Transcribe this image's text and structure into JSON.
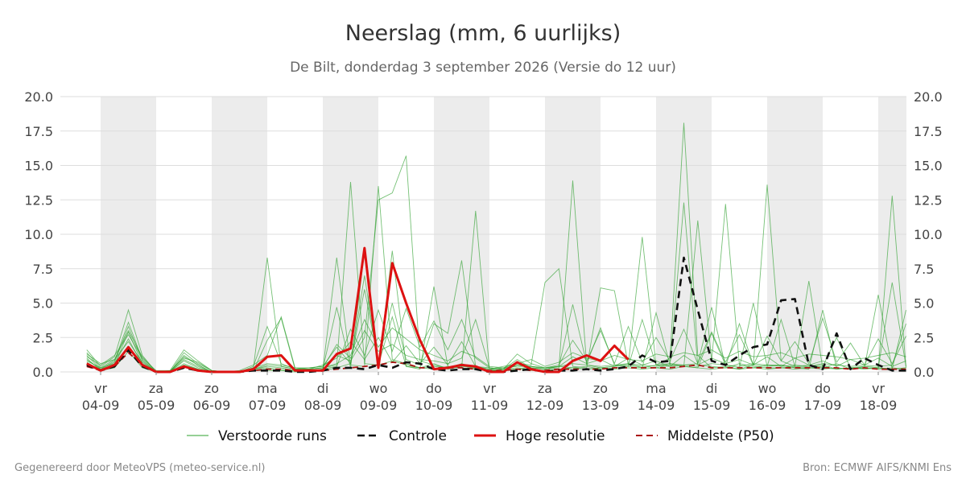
{
  "title": "Neerslag (mm, 6 uurlijks)",
  "subtitle": "De Bilt, donderdag  3 september 2026 (Versie do 12 uur)",
  "footer_left": "Gegenereerd door MeteoVPS (meteo-service.nl)",
  "footer_right": "Bron: ECMWF AIFS/KNMI Ens",
  "chart_data": {
    "type": "line",
    "x_unit": "days",
    "x_start_label": "04-09",
    "ylim": [
      0,
      20
    ],
    "yticks": [
      "0.0",
      "2.5",
      "5.0",
      "7.5",
      "10.0",
      "12.5",
      "15.0",
      "17.5",
      "20.0"
    ],
    "xticks": [
      {
        "day": "vr",
        "date": "04-09"
      },
      {
        "day": "za",
        "date": "05-09"
      },
      {
        "day": "zo",
        "date": "06-09"
      },
      {
        "day": "ma",
        "date": "07-09"
      },
      {
        "day": "di",
        "date": "08-09"
      },
      {
        "day": "wo",
        "date": "09-09"
      },
      {
        "day": "do",
        "date": "10-09"
      },
      {
        "day": "vr",
        "date": "11-09"
      },
      {
        "day": "za",
        "date": "12-09"
      },
      {
        "day": "zo",
        "date": "13-09"
      },
      {
        "day": "ma",
        "date": "14-09"
      },
      {
        "day": "di",
        "date": "15-09"
      },
      {
        "day": "wo",
        "date": "16-09"
      },
      {
        "day": "do",
        "date": "17-09"
      },
      {
        "day": "vr",
        "date": "18-09"
      }
    ],
    "grid": true,
    "legend_position": "bottom",
    "colors": {
      "ensemble": "#2ca02c",
      "control": "#111111",
      "high_res": "#dd1111",
      "median": "#aa1111",
      "weekend_band": "#ececec",
      "grid": "#dddddd"
    },
    "series": [
      {
        "name": "Controle",
        "x": [
          -0.25,
          0,
          0.25,
          0.5,
          0.75,
          1,
          1.25,
          1.5,
          1.75,
          2,
          2.25,
          2.5,
          2.75,
          3,
          3.25,
          3.5,
          3.75,
          4,
          4.25,
          4.5,
          4.75,
          5,
          5.25,
          5.5,
          5.75,
          6,
          6.25,
          6.5,
          6.75,
          7,
          7.25,
          7.5,
          7.75,
          8,
          8.25,
          8.5,
          8.75,
          9,
          9.25,
          9.5,
          9.75,
          10,
          10.25,
          10.5,
          10.75,
          11,
          11.25,
          11.5,
          11.75,
          12,
          12.25,
          12.5,
          12.75,
          13,
          13.25,
          13.5,
          13.75,
          14,
          14.25,
          14.5
        ],
        "values": [
          0.5,
          0.1,
          0.4,
          1.6,
          0.4,
          0.0,
          0.0,
          0.3,
          0.1,
          0.0,
          0.0,
          0.0,
          0.1,
          0.1,
          0.1,
          0.0,
          0.0,
          0.1,
          0.3,
          0.3,
          0.2,
          0.5,
          0.3,
          0.7,
          0.6,
          0.2,
          0.1,
          0.2,
          0.2,
          0.0,
          0.0,
          0.1,
          0.2,
          0.0,
          0.1,
          0.1,
          0.2,
          0.1,
          0.2,
          0.4,
          1.2,
          0.7,
          0.8,
          8.3,
          4.5,
          0.8,
          0.5,
          1.2,
          1.8,
          2.0,
          5.2,
          5.3,
          0.5,
          0.2,
          2.8,
          0.2,
          1.0,
          0.5,
          0.1,
          0.1
        ]
      },
      {
        "name": "Hoge resolutie",
        "x": [
          -0.25,
          0,
          0.25,
          0.5,
          0.75,
          1,
          1.25,
          1.5,
          1.75,
          2,
          2.25,
          2.5,
          2.75,
          3,
          3.25,
          3.5,
          3.75,
          4,
          4.25,
          4.5,
          4.75,
          5,
          5.25,
          5.5,
          5.75,
          6,
          6.25,
          6.5,
          6.75,
          7,
          7.25,
          7.5,
          7.75,
          8,
          8.25,
          8.5,
          8.75,
          9,
          9.25,
          9.5
        ],
        "values": [
          0.6,
          0.1,
          0.5,
          1.8,
          0.5,
          0.0,
          0.0,
          0.4,
          0.1,
          0.0,
          0.0,
          0.0,
          0.2,
          1.1,
          1.2,
          0.1,
          0.1,
          0.1,
          1.3,
          1.7,
          9.0,
          0.3,
          7.9,
          5.0,
          2.3,
          0.2,
          0.3,
          0.5,
          0.4,
          0.0,
          0.0,
          0.7,
          0.2,
          0.0,
          0.0,
          0.8,
          1.2,
          0.8,
          1.9,
          0.9
        ]
      },
      {
        "name": "Middelste (P50)",
        "x": [
          -0.25,
          0,
          0.25,
          0.5,
          0.75,
          1,
          1.25,
          1.5,
          1.75,
          2,
          2.25,
          2.5,
          2.75,
          3,
          3.25,
          3.5,
          3.75,
          4,
          4.25,
          4.5,
          4.75,
          5,
          5.25,
          5.5,
          5.75,
          6,
          6.25,
          6.5,
          6.75,
          7,
          7.25,
          7.5,
          7.75,
          8,
          8.25,
          8.5,
          8.75,
          9,
          9.25,
          9.5,
          9.75,
          10,
          10.25,
          10.5,
          10.75,
          11,
          11.25,
          11.5,
          11.75,
          12,
          12.25,
          12.5,
          12.75,
          13,
          13.25,
          13.5,
          13.75,
          14,
          14.25,
          14.5
        ],
        "values": [
          0.4,
          0.1,
          0.4,
          1.4,
          0.5,
          0.0,
          0.0,
          0.3,
          0.1,
          0.0,
          0.0,
          0.0,
          0.1,
          0.2,
          0.2,
          0.1,
          0.1,
          0.1,
          0.2,
          0.3,
          0.4,
          0.5,
          0.7,
          0.6,
          0.3,
          0.3,
          0.3,
          0.3,
          0.2,
          0.1,
          0.1,
          0.2,
          0.1,
          0.1,
          0.2,
          0.2,
          0.2,
          0.2,
          0.3,
          0.3,
          0.3,
          0.3,
          0.3,
          0.4,
          0.5,
          0.3,
          0.3,
          0.3,
          0.3,
          0.3,
          0.3,
          0.3,
          0.3,
          0.3,
          0.3,
          0.2,
          0.3,
          0.2,
          0.2,
          0.2
        ]
      }
    ],
    "ensemble": {
      "name": "Verstoorde runs",
      "x": [
        -0.25,
        0,
        0.25,
        0.5,
        0.75,
        1,
        1.25,
        1.5,
        1.75,
        2,
        2.25,
        2.5,
        2.75,
        3,
        3.25,
        3.5,
        3.75,
        4,
        4.25,
        4.5,
        4.75,
        5,
        5.25,
        5.5,
        5.75,
        6,
        6.25,
        6.5,
        6.75,
        7,
        7.25,
        7.5,
        7.75,
        8,
        8.25,
        8.5,
        8.75,
        9,
        9.25,
        9.5,
        9.75,
        10,
        10.25,
        10.5,
        10.75,
        11,
        11.25,
        11.5,
        11.75,
        12,
        12.25,
        12.5,
        12.75,
        13,
        13.25,
        13.5,
        13.75,
        14,
        14.25,
        14.5
      ],
      "members": [
        [
          1.2,
          0.2,
          0.8,
          3.6,
          0.9,
          0.0,
          0.0,
          1.2,
          0.5,
          0.0,
          0.0,
          0.0,
          0.3,
          8.3,
          0.4,
          0.2,
          0.2,
          0.3,
          0.5,
          13.8,
          0.6,
          0.5,
          0.8,
          0.5,
          0.3,
          0.4,
          0.3,
          0.5,
          0.2,
          0.1,
          0.1,
          0.5,
          0.3,
          0.2,
          0.4,
          0.3,
          0.2,
          0.3,
          0.4,
          0.6,
          0.3,
          0.5,
          1.0,
          18.1,
          1.2,
          0.3,
          0.4,
          0.2,
          0.5,
          13.6,
          0.8,
          0.4,
          0.5,
          0.3,
          0.6,
          0.2,
          0.4,
          0.3,
          0.2,
          4.5
        ],
        [
          0.8,
          0.3,
          0.6,
          2.4,
          0.5,
          0.0,
          0.0,
          0.6,
          0.2,
          0.0,
          0.0,
          0.0,
          0.1,
          0.2,
          0.1,
          0.1,
          0.1,
          0.2,
          8.3,
          0.5,
          0.4,
          13.5,
          0.9,
          0.6,
          0.3,
          0.2,
          0.4,
          0.3,
          11.7,
          0.2,
          0.1,
          0.2,
          0.4,
          0.2,
          0.3,
          13.9,
          0.5,
          0.3,
          0.4,
          0.5,
          9.8,
          0.5,
          0.6,
          0.4,
          11.0,
          0.8,
          12.2,
          0.5,
          0.3,
          0.5,
          0.5,
          0.3,
          0.4,
          0.5,
          0.2,
          0.3,
          0.3,
          0.2,
          12.8,
          0.3
        ],
        [
          1.6,
          0.4,
          1.1,
          4.5,
          1.2,
          0.0,
          0.1,
          1.6,
          0.8,
          0.1,
          0.0,
          0.1,
          0.5,
          1.2,
          4.0,
          0.3,
          0.3,
          0.4,
          1.2,
          0.8,
          2.5,
          12.5,
          13.0,
          15.7,
          0.8,
          0.5,
          0.3,
          0.6,
          0.3,
          0.2,
          0.4,
          0.6,
          0.5,
          6.5,
          7.5,
          0.4,
          0.3,
          6.1,
          5.9,
          0.5,
          0.4,
          0.3,
          0.5,
          12.3,
          0.5,
          0.4,
          0.3,
          0.6,
          0.4,
          0.3,
          0.3,
          0.4,
          6.6,
          0.3,
          0.2,
          0.3,
          0.2,
          0.3,
          0.2,
          0.3
        ],
        [
          1.0,
          0.1,
          0.5,
          2.9,
          0.6,
          0.0,
          0.0,
          0.8,
          0.3,
          0.0,
          0.0,
          0.0,
          0.2,
          0.4,
          0.3,
          0.1,
          0.1,
          0.2,
          4.7,
          0.3,
          8.8,
          0.3,
          8.8,
          0.4,
          0.2,
          6.2,
          0.4,
          0.3,
          0.2,
          0.1,
          0.2,
          0.3,
          0.2,
          0.1,
          0.2,
          0.3,
          0.4,
          0.2,
          0.3,
          0.4,
          0.3,
          4.3,
          0.5,
          0.4,
          0.3,
          2.8,
          0.5,
          0.3,
          5.0,
          0.4,
          0.5,
          0.3,
          0.2,
          4.5,
          0.3,
          0.2,
          0.3,
          5.6,
          0.2,
          0.3
        ],
        [
          0.6,
          0.2,
          0.7,
          3.3,
          0.8,
          0.0,
          0.0,
          1.4,
          0.6,
          0.1,
          0.0,
          0.0,
          0.4,
          3.3,
          0.6,
          0.2,
          0.3,
          0.4,
          1.8,
          0.6,
          6.0,
          0.8,
          5.0,
          0.9,
          0.5,
          3.5,
          2.8,
          8.1,
          0.4,
          0.2,
          0.3,
          0.4,
          0.4,
          0.3,
          0.4,
          4.9,
          0.6,
          3.2,
          0.5,
          0.4,
          3.8,
          0.5,
          0.4,
          0.5,
          0.6,
          4.7,
          0.4,
          3.5,
          0.5,
          0.4,
          3.8,
          0.4,
          0.3,
          0.4,
          2.5,
          0.3,
          0.4,
          0.3,
          6.5,
          0.4
        ],
        [
          1.4,
          0.3,
          0.9,
          2.2,
          0.7,
          0.0,
          0.0,
          0.9,
          0.4,
          0.0,
          0.0,
          0.0,
          0.2,
          0.3,
          0.2,
          0.1,
          0.2,
          0.3,
          0.6,
          1.2,
          3.8,
          1.8,
          3.2,
          2.4,
          1.6,
          1.2,
          0.8,
          1.5,
          1.1,
          0.4,
          0.3,
          0.6,
          0.9,
          0.4,
          0.7,
          1.4,
          1.0,
          0.8,
          1.2,
          0.9,
          0.8,
          1.3,
          1.1,
          1.4,
          1.2,
          1.6,
          1.0,
          1.5,
          1.1,
          1.2,
          1.4,
          1.0,
          1.3,
          1.2,
          1.1,
          0.9,
          1.0,
          1.2,
          1.4,
          1.1
        ],
        [
          0.9,
          0.2,
          0.4,
          1.8,
          0.4,
          0.0,
          0.0,
          0.5,
          0.2,
          0.0,
          0.0,
          0.0,
          0.1,
          2.3,
          3.9,
          0.2,
          0.1,
          0.2,
          0.4,
          3.1,
          1.2,
          4.5,
          1.5,
          4.6,
          1.8,
          3.7,
          1.6,
          3.8,
          1.0,
          0.3,
          0.2,
          1.3,
          0.6,
          0.3,
          0.5,
          2.3,
          0.8,
          3.0,
          0.6,
          3.3,
          0.7,
          2.5,
          0.8,
          3.1,
          0.6,
          2.9,
          0.7,
          2.7,
          0.5,
          2.6,
          0.8,
          2.2,
          0.6,
          3.9,
          0.7,
          2.1,
          0.5,
          2.4,
          0.6,
          2.6
        ],
        [
          1.1,
          0.5,
          1.2,
          2.7,
          1.0,
          0.1,
          0.1,
          1.0,
          0.7,
          0.1,
          0.0,
          0.0,
          0.3,
          0.6,
          0.5,
          0.3,
          0.2,
          0.5,
          1.0,
          2.2,
          0.9,
          2.5,
          0.7,
          1.9,
          0.6,
          1.8,
          0.5,
          2.2,
          0.4,
          0.3,
          0.2,
          0.9,
          0.3,
          0.2,
          0.4,
          1.1,
          0.6,
          0.9,
          0.4,
          1.0,
          0.5,
          0.8,
          0.4,
          1.2,
          0.5,
          1.0,
          0.6,
          0.9,
          0.5,
          1.1,
          0.4,
          1.0,
          0.5,
          0.8,
          0.4,
          0.9,
          0.5,
          1.0,
          0.4,
          0.8
        ],
        [
          0.7,
          0.1,
          0.3,
          1.5,
          0.3,
          0.0,
          0.0,
          0.4,
          0.1,
          0.0,
          0.0,
          0.0,
          0.1,
          0.1,
          0.1,
          0.0,
          0.1,
          0.1,
          0.3,
          0.6,
          7.0,
          0.5,
          4.0,
          0.4,
          0.3,
          0.6,
          0.2,
          0.4,
          0.3,
          0.1,
          0.1,
          0.2,
          0.1,
          0.1,
          0.2,
          0.3,
          0.2,
          0.3,
          0.2,
          0.3,
          0.2,
          0.3,
          0.2,
          0.4,
          0.3,
          0.2,
          0.3,
          0.2,
          0.3,
          0.2,
          0.3,
          0.2,
          0.3,
          0.2,
          0.3,
          0.2,
          0.3,
          0.2,
          0.3,
          0.2
        ],
        [
          1.3,
          0.6,
          0.9,
          3.0,
          1.1,
          0.0,
          0.0,
          1.1,
          0.5,
          0.0,
          0.0,
          0.0,
          0.2,
          0.5,
          0.4,
          0.2,
          0.2,
          0.3,
          2.0,
          1.0,
          3.0,
          1.5,
          2.0,
          1.2,
          0.9,
          0.8,
          0.6,
          1.0,
          3.8,
          0.3,
          0.2,
          0.5,
          0.4,
          0.3,
          0.4,
          0.6,
          0.5,
          0.4,
          0.5,
          0.6,
          0.5,
          0.4,
          0.6,
          0.5,
          0.4,
          0.6,
          0.5,
          0.4,
          0.6,
          0.5,
          0.4,
          0.5,
          0.4,
          0.6,
          0.5,
          0.4,
          0.5,
          0.4,
          0.5,
          3.5
        ]
      ]
    }
  },
  "legend": [
    {
      "key": "ensemble",
      "label": "Verstoorde runs"
    },
    {
      "key": "control",
      "label": "Controle"
    },
    {
      "key": "high_res",
      "label": "Hoge resolutie"
    },
    {
      "key": "median",
      "label": "Middelste (P50)"
    }
  ]
}
